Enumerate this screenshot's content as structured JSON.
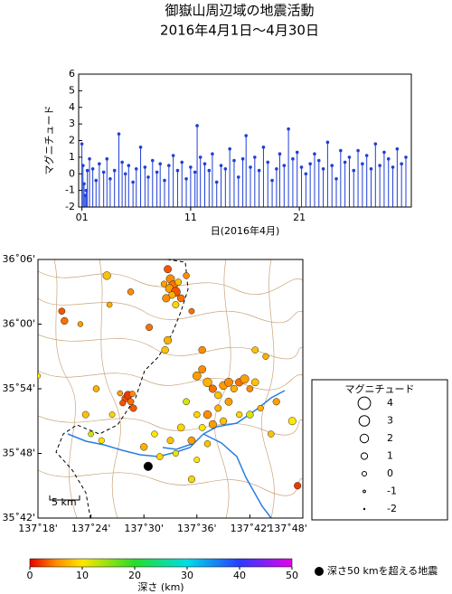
{
  "chart_data": [
    {
      "type": "stem",
      "title": "御嶽山周辺域の地震活動",
      "subtitle": "2016年4月1日～4月30日",
      "x_label": "日(2016年4月)",
      "y_label": "マグニチュード",
      "color": "#1f3fd6",
      "xlim": [
        0.7,
        31.3
      ],
      "ylim": [
        -2,
        6
      ],
      "xticks": [
        {
          "value": 1,
          "label": "01"
        },
        {
          "value": 11,
          "label": "11"
        },
        {
          "value": 21,
          "label": "21"
        }
      ],
      "yticks": [
        -2,
        -1,
        0,
        1,
        2,
        3,
        4,
        5,
        6
      ],
      "x": [
        1.0,
        1.1,
        1.2,
        1.3,
        1.4,
        1.5,
        1.7,
        2.0,
        2.3,
        2.6,
        3.0,
        3.3,
        3.6,
        4.0,
        4.4,
        4.7,
        5.0,
        5.3,
        5.7,
        6.0,
        6.4,
        6.8,
        7.1,
        7.5,
        7.9,
        8.2,
        8.6,
        9.0,
        9.4,
        9.8,
        10.2,
        10.6,
        11.0,
        11.4,
        11.6,
        11.9,
        12.3,
        12.7,
        13.0,
        13.4,
        13.8,
        14.2,
        14.6,
        15.0,
        15.4,
        15.8,
        16.1,
        16.5,
        16.9,
        17.3,
        17.7,
        18.1,
        18.5,
        18.9,
        19.2,
        19.6,
        20.0,
        20.4,
        20.8,
        21.2,
        21.6,
        22.0,
        22.4,
        22.8,
        23.2,
        23.6,
        24.0,
        24.4,
        24.8,
        25.2,
        25.6,
        26.0,
        26.4,
        26.8,
        27.2,
        27.6,
        28.0,
        28.4,
        28.8,
        29.2,
        29.6,
        30.0,
        30.4,
        30.8
      ],
      "values": [
        1.8,
        0.5,
        -0.6,
        -1.3,
        -1.0,
        0.2,
        0.9,
        0.3,
        -0.4,
        0.6,
        0.1,
        0.9,
        -0.3,
        0.2,
        2.4,
        0.7,
        0.0,
        0.5,
        -0.5,
        0.3,
        1.6,
        0.4,
        -0.2,
        0.8,
        0.1,
        0.6,
        -0.4,
        0.5,
        1.1,
        0.2,
        0.7,
        -0.3,
        0.4,
        0.1,
        2.9,
        1.0,
        0.6,
        0.2,
        1.2,
        -0.5,
        0.5,
        0.3,
        1.5,
        0.8,
        -0.2,
        0.9,
        2.3,
        0.4,
        1.0,
        0.2,
        1.6,
        0.7,
        -0.4,
        0.3,
        1.2,
        0.5,
        2.7,
        0.9,
        1.3,
        0.4,
        0.0,
        0.6,
        1.2,
        0.8,
        0.3,
        1.9,
        0.5,
        -0.3,
        1.4,
        0.7,
        1.0,
        0.2,
        1.4,
        0.6,
        1.1,
        0.3,
        1.8,
        0.5,
        1.3,
        0.9,
        0.4,
        1.5,
        0.6,
        1.0
      ]
    },
    {
      "type": "scatter",
      "xlim": [
        137.3,
        137.8
      ],
      "ylim": [
        35.7,
        36.1
      ],
      "xticks": [
        {
          "value": 137.3,
          "label": "137˚18'"
        },
        {
          "value": 137.4,
          "label": "137˚24'"
        },
        {
          "value": 137.5,
          "label": "137˚30'"
        },
        {
          "value": 137.6,
          "label": "137˚36'"
        },
        {
          "value": 137.7,
          "label": "137˚42'"
        },
        {
          "value": 137.8,
          "label": "137˚48'"
        }
      ],
      "yticks": [
        {
          "value": 35.7,
          "label": "35˚42'"
        },
        {
          "value": 35.8,
          "label": "35˚48'"
        },
        {
          "value": 35.9,
          "label": "35˚54'"
        },
        {
          "value": 36.0,
          "label": "36˚00'"
        },
        {
          "value": 36.1,
          "label": "36˚06'"
        }
      ],
      "x": [
        137.545,
        137.55,
        137.555,
        137.548,
        137.56,
        137.553,
        137.542,
        137.565,
        137.57,
        137.538,
        137.58,
        137.56,
        137.59,
        137.345,
        137.35,
        137.38,
        137.435,
        137.43,
        137.475,
        137.51,
        137.545,
        137.54,
        137.465,
        137.47,
        137.475,
        137.46,
        137.478,
        137.455,
        137.48,
        137.44,
        137.41,
        137.6,
        137.61,
        137.62,
        137.63,
        137.64,
        137.65,
        137.66,
        137.67,
        137.68,
        137.69,
        137.7,
        137.71,
        137.66,
        137.64,
        137.62,
        137.6,
        137.63,
        137.61,
        137.65,
        137.68,
        137.7,
        137.72,
        137.75,
        137.78,
        137.74,
        137.58,
        137.57,
        137.55,
        137.52,
        137.5,
        137.53,
        137.56,
        137.59,
        137.62,
        137.6,
        137.59,
        137.4,
        137.42,
        137.39,
        137.3,
        137.79,
        137.73,
        137.71,
        137.61,
        137.508
      ],
      "y": [
        36.085,
        36.07,
        36.06,
        36.055,
        36.05,
        36.045,
        36.04,
        36.065,
        36.04,
        36.062,
        36.075,
        36.03,
        36.02,
        36.02,
        36.005,
        36.0,
        36.03,
        36.075,
        36.05,
        35.995,
        35.975,
        35.96,
        35.885,
        35.89,
        35.88,
        35.878,
        35.892,
        35.893,
        35.87,
        35.86,
        35.9,
        35.92,
        35.93,
        35.91,
        35.9,
        35.89,
        35.905,
        35.91,
        35.9,
        35.91,
        35.915,
        35.9,
        35.91,
        35.88,
        35.87,
        35.86,
        35.86,
        35.845,
        35.84,
        35.85,
        35.86,
        35.86,
        35.87,
        35.88,
        35.85,
        35.83,
        35.88,
        35.84,
        35.82,
        35.83,
        35.81,
        35.795,
        35.8,
        35.82,
        35.815,
        35.79,
        35.76,
        35.83,
        35.82,
        35.86,
        35.92,
        35.75,
        35.95,
        35.96,
        35.96,
        35.78
      ],
      "depth": [
        3,
        5,
        4,
        6,
        3,
        7,
        5,
        8,
        4,
        6,
        5,
        9,
        4,
        3,
        4,
        6,
        7,
        8,
        5,
        4,
        7,
        8,
        3,
        2,
        4,
        3,
        5,
        6,
        3,
        9,
        7,
        6,
        5,
        7,
        4,
        8,
        6,
        5,
        7,
        4,
        6,
        5,
        8,
        6,
        7,
        5,
        9,
        6,
        10,
        8,
        9,
        12,
        7,
        6,
        10,
        8,
        12,
        9,
        8,
        10,
        7,
        9,
        11,
        6,
        8,
        10,
        9,
        12,
        10,
        8,
        10,
        2,
        7,
        8,
        5,
        60
      ],
      "size": [
        1.5,
        2.0,
        2.3,
        1.8,
        2.4,
        1.2,
        1.6,
        1.0,
        1.4,
        0.8,
        0.9,
        1.1,
        0.6,
        1.0,
        1.3,
        0.4,
        0.5,
        1.7,
        0.9,
        1.1,
        1.6,
        1.3,
        1.3,
        1.8,
        1.0,
        0.8,
        0.7,
        0.5,
        1.2,
        0.6,
        0.9,
        1.9,
        1.5,
        2.2,
        1.6,
        1.3,
        1.8,
        2.0,
        1.2,
        1.7,
        2.1,
        1.0,
        1.4,
        1.5,
        1.1,
        1.8,
        0.9,
        1.6,
        1.0,
        1.2,
        0.8,
        1.3,
        0.7,
        1.2,
        1.6,
        0.9,
        1.0,
        1.4,
        1.1,
        0.8,
        1.3,
        1.0,
        0.7,
        1.5,
        0.9,
        0.6,
        1.2,
        0.5,
        0.7,
        1.1,
        0.4,
        1.2,
        0.8,
        1.0,
        1.3,
        2.1
      ],
      "scale_label": "5 km",
      "size_legend": {
        "title": "マグニチュード",
        "values": [
          4,
          3,
          2,
          1,
          0,
          -1,
          -2
        ]
      },
      "colorbar": {
        "label": "深さ (km)",
        "lim": [
          0,
          50
        ],
        "ticks": [
          0,
          10,
          20,
          30,
          40,
          50
        ]
      },
      "deep_note": "深さ50 kmを超える地震"
    }
  ]
}
